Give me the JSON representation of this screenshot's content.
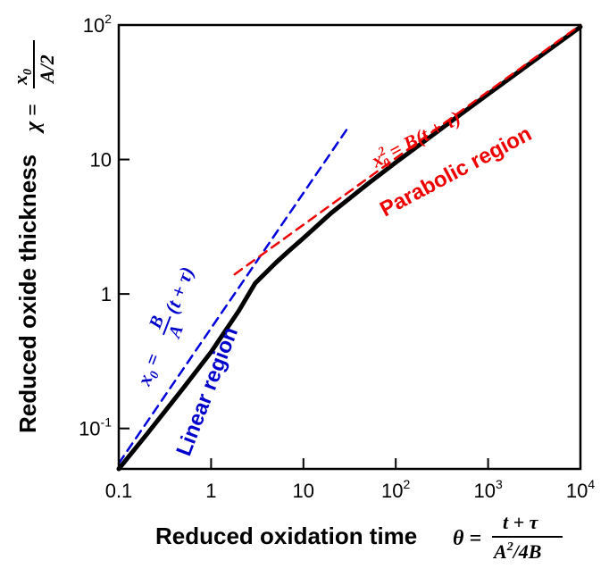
{
  "chart_data": {
    "type": "line",
    "xscale": "log",
    "yscale": "log",
    "xlim": [
      0.1,
      10000
    ],
    "ylim": [
      0.05,
      100
    ],
    "grid": false,
    "legend": "none",
    "xlabel": "Reduced oxidation time",
    "ylabel": "Reduced oxide thickness",
    "x_ticks": [
      {
        "base": "0.1",
        "exp": ""
      },
      {
        "base": "1",
        "exp": ""
      },
      {
        "base": "10",
        "exp": ""
      },
      {
        "base": "10",
        "exp": "2"
      },
      {
        "base": "10",
        "exp": "3"
      },
      {
        "base": "10",
        "exp": "4"
      }
    ],
    "x_tick_values": [
      0.1,
      1,
      10,
      100,
      1000,
      10000
    ],
    "y_ticks": [
      {
        "base": "10",
        "exp": "-1"
      },
      {
        "base": "1",
        "exp": ""
      },
      {
        "base": "10",
        "exp": ""
      },
      {
        "base": "10",
        "exp": "2"
      }
    ],
    "y_tick_values": [
      0.1,
      1,
      10,
      100
    ],
    "series": [
      {
        "color": "#000000",
        "style": "solid",
        "x": [
          0.1,
          0.2,
          0.5,
          1,
          2,
          3,
          5,
          7,
          10,
          20,
          50,
          100,
          200,
          500,
          1000,
          2000,
          5000,
          10000
        ],
        "y": [
          0.05,
          0.09,
          0.2,
          0.37,
          0.75,
          1.2,
          1.7,
          2.1,
          2.6,
          4.0,
          6.6,
          9.5,
          13.5,
          21.6,
          30.6,
          43.3,
          68.5,
          96.9
        ]
      },
      {
        "color": "#0000dd",
        "style": "dashed",
        "x": [
          0.1,
          30
        ],
        "y": [
          0.055,
          17
        ]
      },
      {
        "color": "#ee0000",
        "style": "dashed",
        "x": [
          1.8,
          10000
        ],
        "y": [
          1.4,
          100
        ]
      }
    ],
    "annotations": {
      "linear_region": {
        "text": "Linear region",
        "color": "#0000cc"
      },
      "parabolic_region": {
        "text": "Parabolic region",
        "color": "#ee0000"
      },
      "linear_eq": {
        "text": "x0 = (B/A)(t+τ)",
        "color": "#0000cc"
      },
      "parabolic_eq": {
        "text": "x0² = B(t+τ)",
        "color": "#ee0000"
      },
      "theta_def": {
        "text": "θ = (t+τ)/(A²/4B)",
        "color": "#000000"
      },
      "chi_def": {
        "text": "χ = x0/(A/2)",
        "color": "#000000"
      }
    }
  }
}
